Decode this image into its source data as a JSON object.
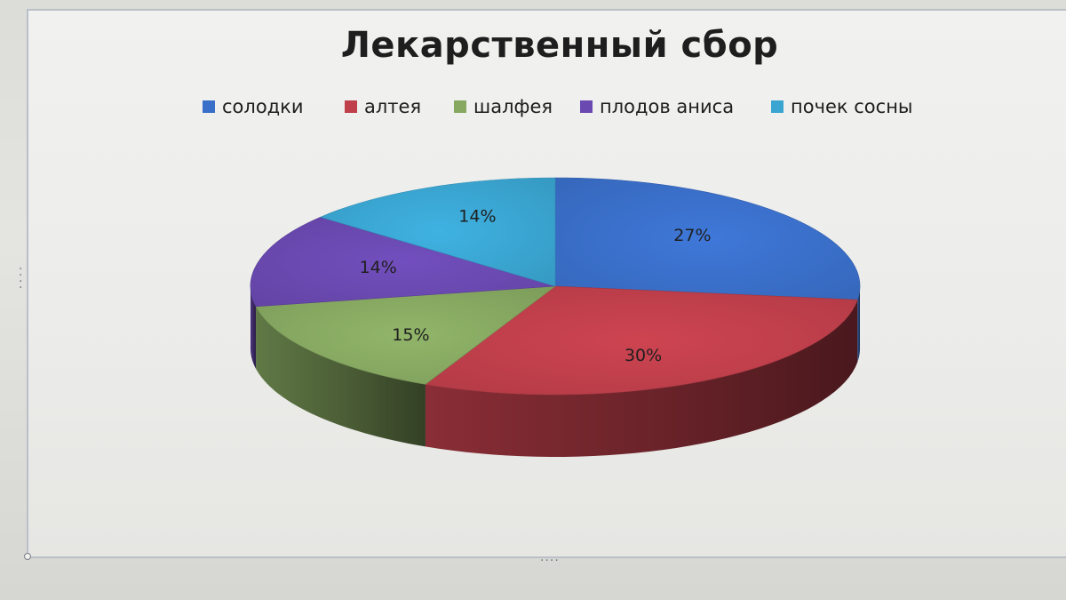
{
  "chart_data": {
    "type": "pie",
    "style": "3d",
    "title": "Лекарственный сбор",
    "legend_position": "top",
    "slices": [
      {
        "label": "солодки",
        "value": 27,
        "display": "27%",
        "color": "#3a6fc9"
      },
      {
        "label": "алтея",
        "value": 30,
        "display": "30%",
        "color": "#bf3f4b"
      },
      {
        "label": "шалфея",
        "value": 15,
        "display": "15%",
        "color": "#86a861"
      },
      {
        "label": "плодов аниса",
        "value": 14,
        "display": "14%",
        "color": "#6a49b0"
      },
      {
        "label": "почек сосны",
        "value": 14,
        "display": "14%",
        "color": "#3aa5d1"
      }
    ]
  },
  "colors": {
    "frame_border": "#b9c0c8",
    "background": "#efefed"
  }
}
